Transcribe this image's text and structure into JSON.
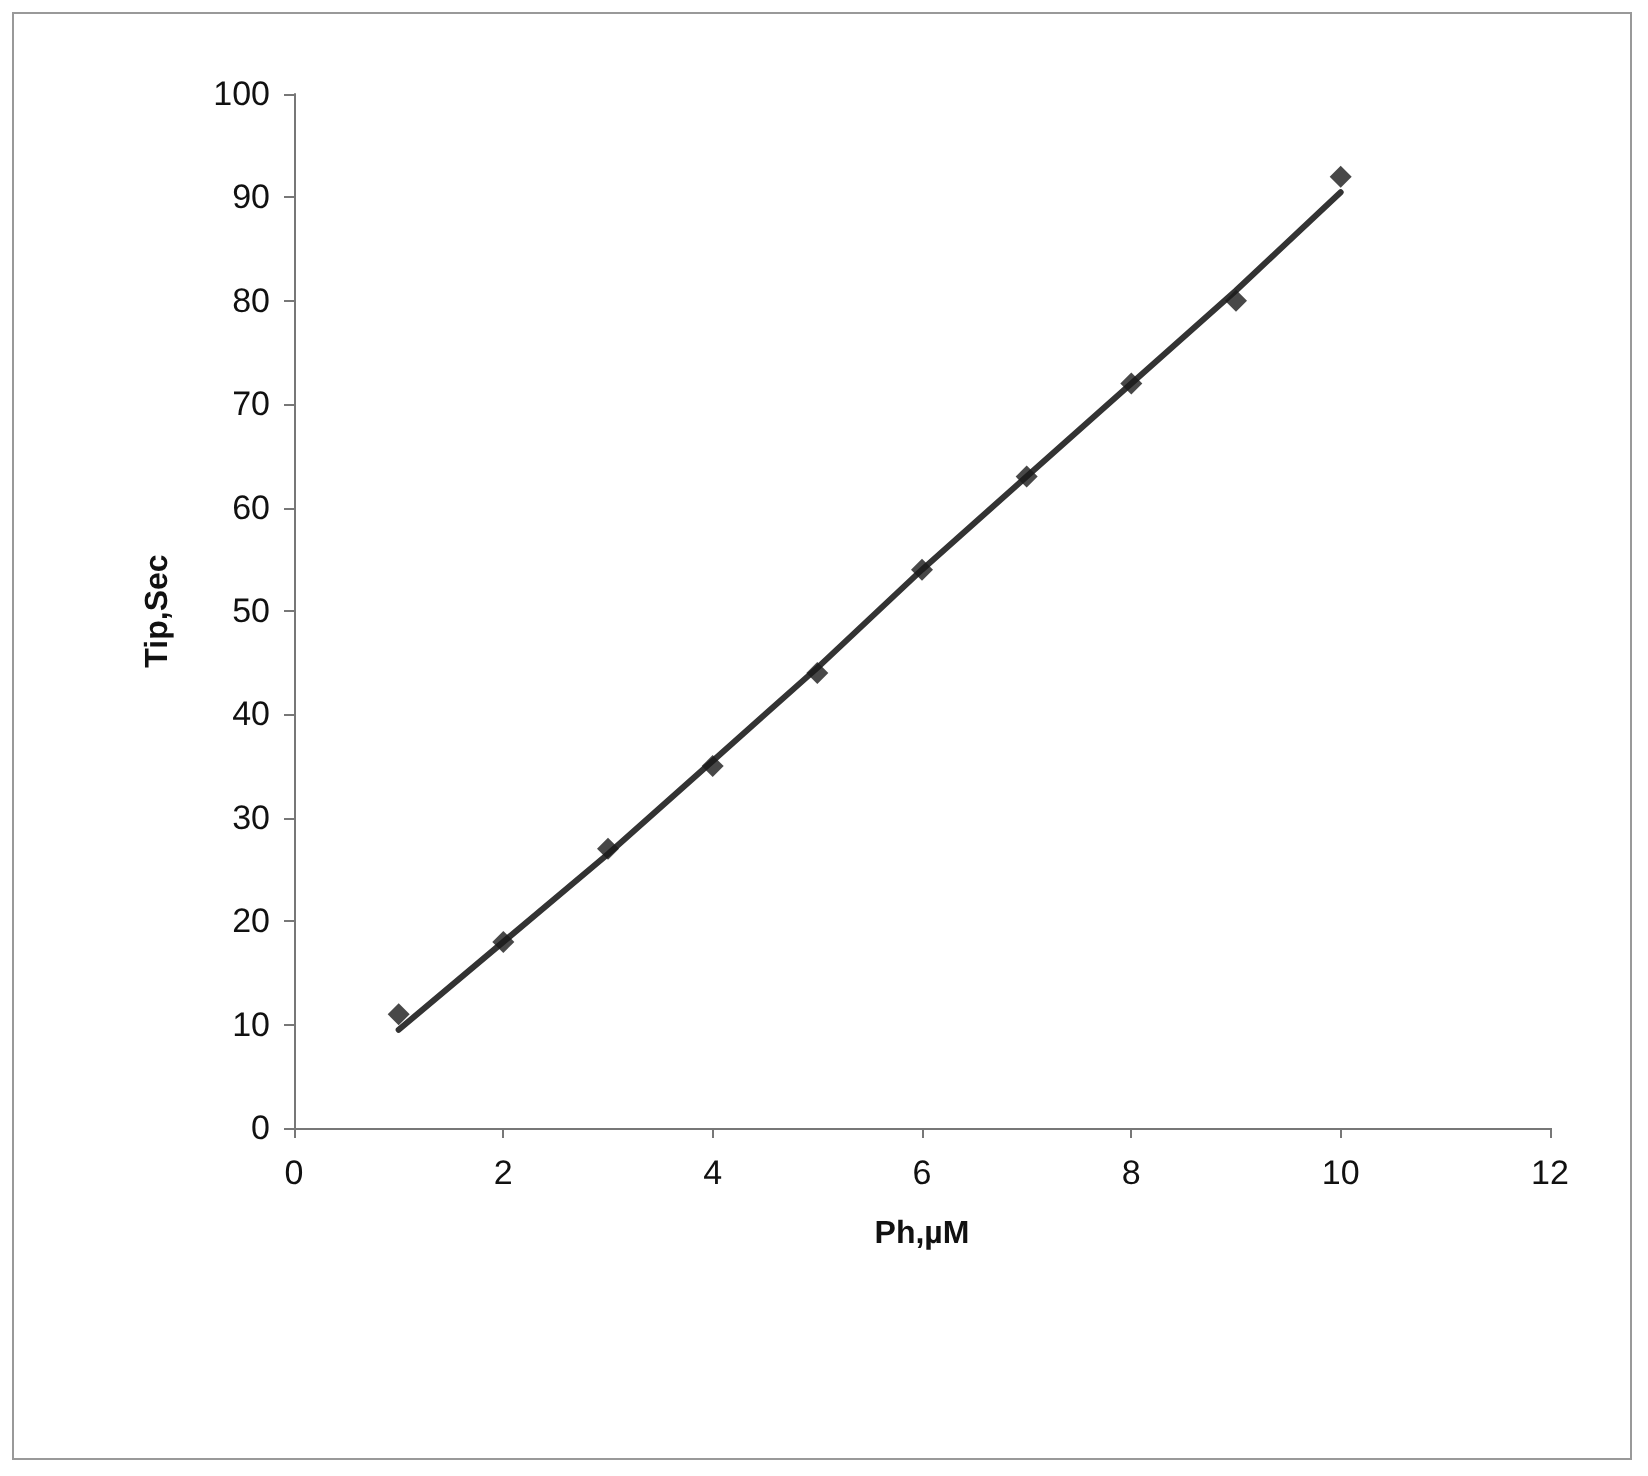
{
  "chart_data": {
    "type": "scatter",
    "xlabel": "Ph,µM",
    "ylabel": "Tip,Sec",
    "marker": "diamond",
    "grid": false,
    "xlim": [
      0,
      12
    ],
    "xticks": [
      0,
      2,
      4,
      6,
      8,
      10,
      12
    ],
    "ylim": [
      0,
      100
    ],
    "yticks": [
      0,
      10,
      20,
      30,
      40,
      50,
      60,
      70,
      80,
      90,
      100
    ],
    "series": [
      {
        "color": "#1a1a1a",
        "x": [
          1,
          2,
          3,
          4,
          5,
          6,
          7,
          8,
          9,
          10
        ],
        "values": [
          11,
          18,
          27,
          35,
          44,
          54,
          63,
          72,
          80,
          92
        ]
      },
      {
        "type": "line",
        "color": "#333333",
        "marker": "none",
        "x": [
          1,
          2,
          3,
          4,
          5,
          6,
          7,
          8,
          9,
          10
        ],
        "values": [
          9.5,
          18,
          26.5,
          35.5,
          44.5,
          54,
          63,
          72,
          81,
          90.5
        ]
      }
    ]
  }
}
